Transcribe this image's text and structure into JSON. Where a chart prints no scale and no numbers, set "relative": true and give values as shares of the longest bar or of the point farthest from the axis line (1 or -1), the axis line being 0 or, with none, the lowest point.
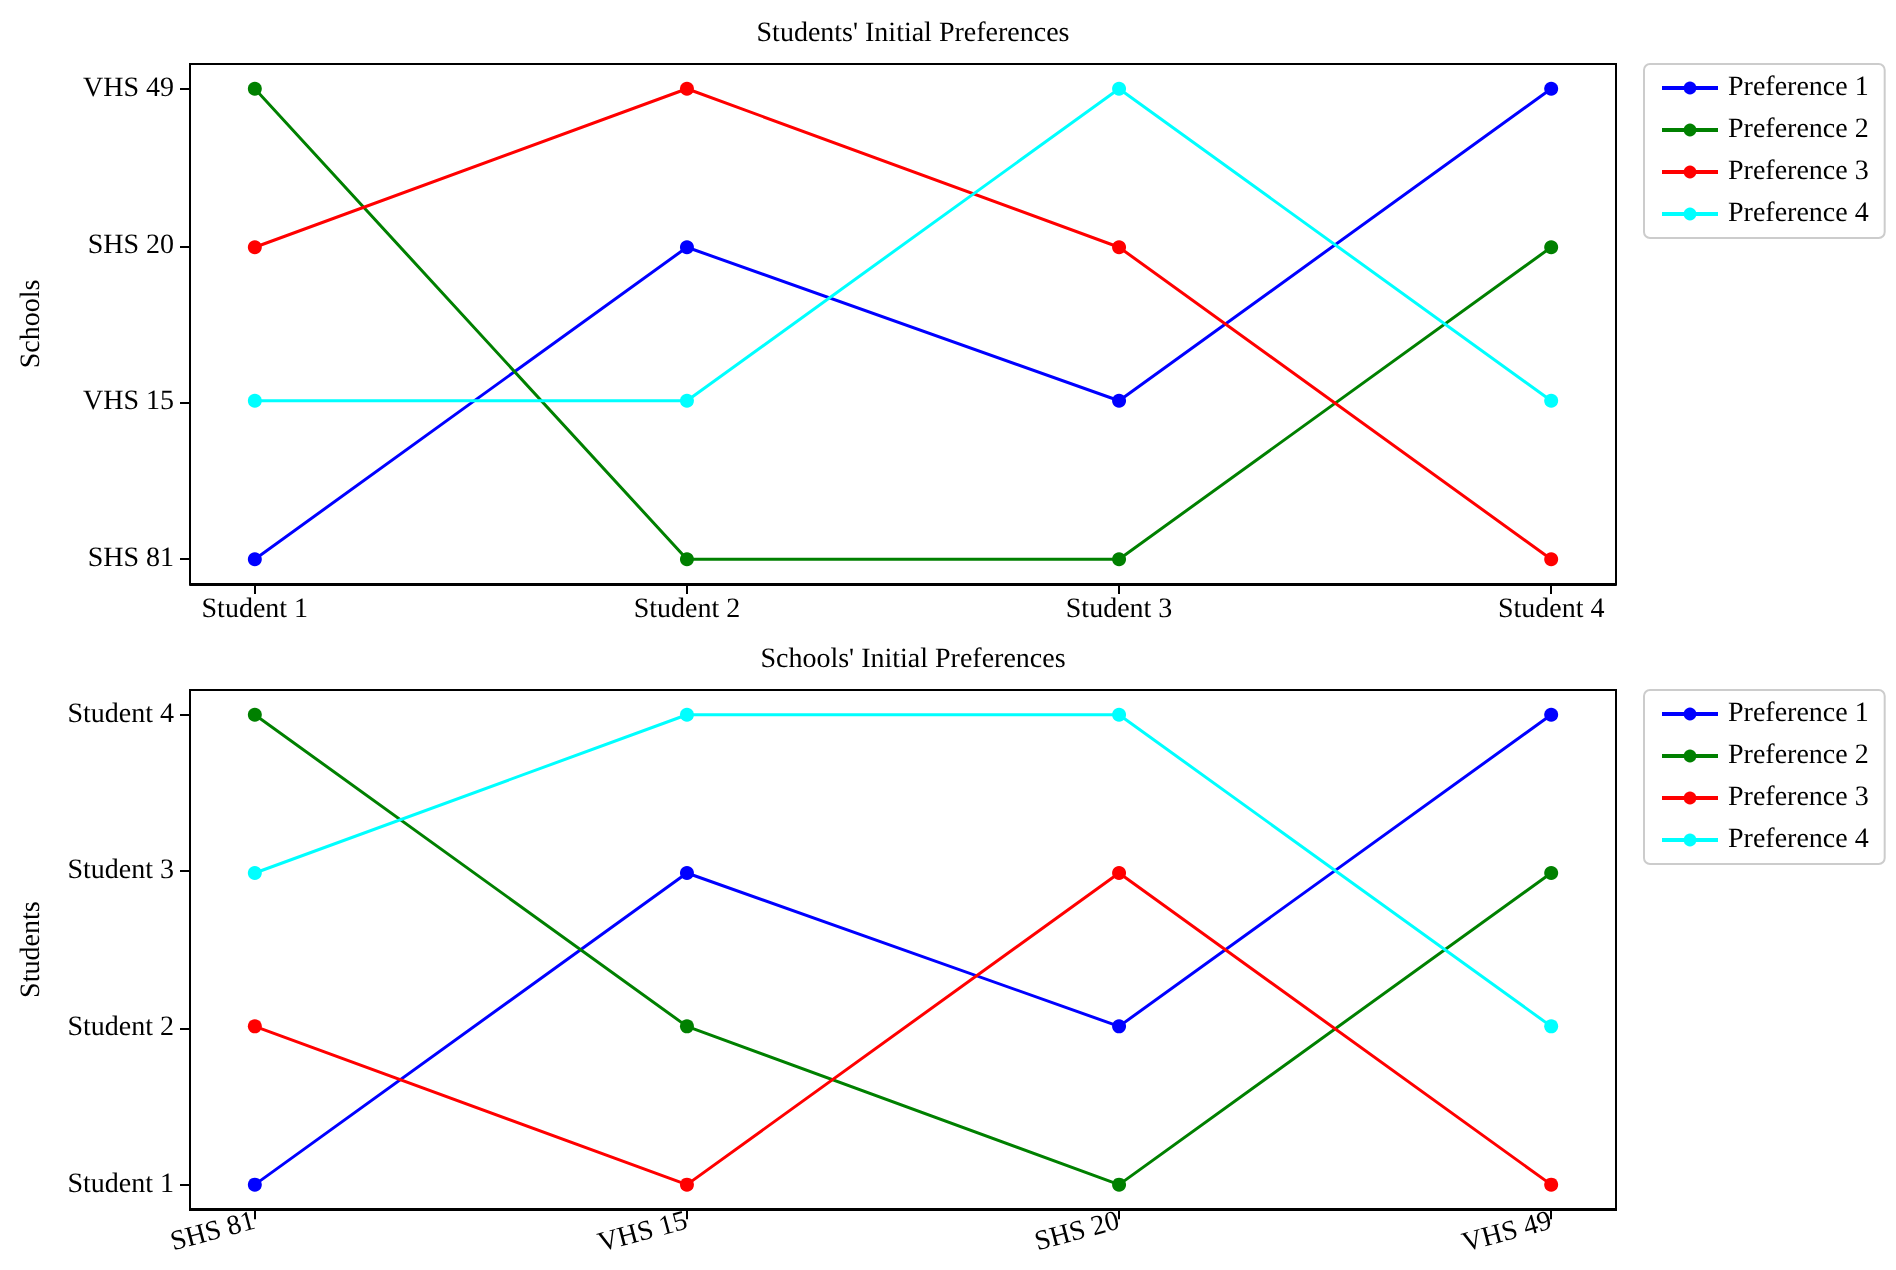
{
  "chart_data": [
    {
      "type": "line",
      "title": "Students' Initial Preferences",
      "ylabel": "Schools",
      "categories": [
        "Student 1",
        "Student 2",
        "Student 3",
        "Student 4"
      ],
      "y_categories": [
        "VHS 49",
        "SHS 20",
        "VHS 15",
        "SHS 81"
      ],
      "relative": true,
      "series": [
        {
          "name": "Preference 1",
          "color": "#0000ff",
          "values": [
            0.05,
            0.68,
            0.37,
            1
          ]
        },
        {
          "name": "Preference 2",
          "color": "#008000",
          "values": [
            1,
            0.05,
            0.05,
            0.68
          ]
        },
        {
          "name": "Preference 3",
          "color": "#ff0000",
          "values": [
            0.68,
            1,
            0.68,
            0.05
          ]
        },
        {
          "name": "Preference 4",
          "color": "#00ffff",
          "values": [
            0.37,
            0.37,
            1,
            0.37
          ]
        }
      ],
      "legend": "right",
      "marker": "circle",
      "grid": false
    },
    {
      "type": "line",
      "title": "Schools' Initial Preferences",
      "ylabel": "Students",
      "categories": [
        "SHS 81",
        "VHS 15",
        "SHS 20",
        "VHS 49"
      ],
      "y_categories": [
        "Student 4",
        "Student 3",
        "Student 2",
        "Student 1"
      ],
      "relative": true,
      "series": [
        {
          "name": "Preference 1",
          "color": "#0000ff",
          "values": [
            0.05,
            0.68,
            0.37,
            1
          ]
        },
        {
          "name": "Preference 2",
          "color": "#008000",
          "values": [
            1,
            0.37,
            0.05,
            0.68
          ]
        },
        {
          "name": "Preference 3",
          "color": "#ff0000",
          "values": [
            0.37,
            0.05,
            0.68,
            0.05
          ]
        },
        {
          "name": "Preference 4",
          "color": "#00ffff",
          "values": [
            0.68,
            1,
            1,
            0.37
          ]
        }
      ],
      "legend": "right",
      "marker": "circle",
      "grid": false
    }
  ]
}
